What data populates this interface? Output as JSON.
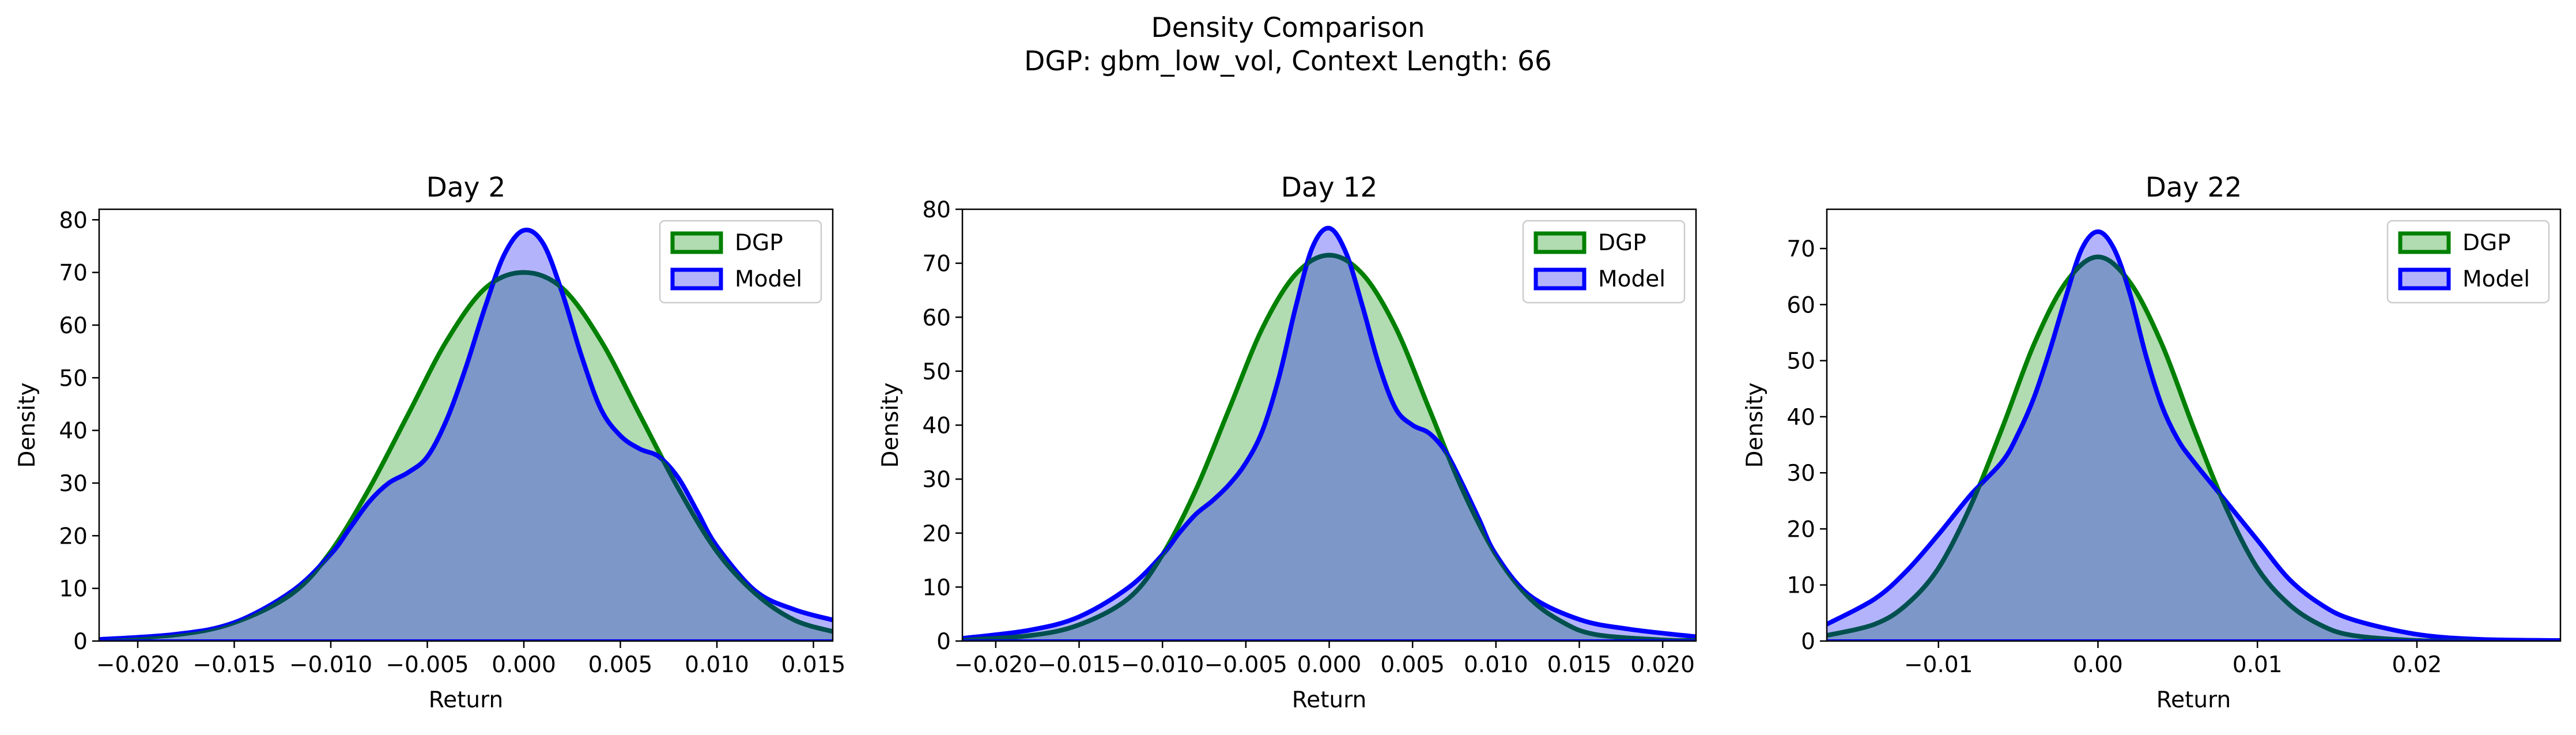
{
  "figure": {
    "title_line1": "Density Comparison",
    "title_line2": "DGP: gbm_low_vol, Context Length: 66"
  },
  "colors": {
    "dgp_line": "#008000",
    "dgp_fill": "#b1dbb1",
    "model_line": "#0000ff",
    "model_fill": "#b3b3fb",
    "overlap_fill": "#7e97c9",
    "overlap_line": "#005050"
  },
  "chart_data": [
    {
      "type": "area",
      "title": "Day 2",
      "xlabel": "Return",
      "ylabel": "Density",
      "xlim": [
        -0.022,
        0.016
      ],
      "ylim": [
        0,
        82
      ],
      "xticks": [
        -0.02,
        -0.015,
        -0.01,
        -0.005,
        0.0,
        0.005,
        0.01,
        0.015
      ],
      "xtick_labels": [
        "−0.020",
        "−0.015",
        "−0.010",
        "−0.005",
        "0.000",
        "0.005",
        "0.010",
        "0.015"
      ],
      "yticks": [
        0,
        10,
        20,
        30,
        40,
        50,
        60,
        70,
        80
      ],
      "ytick_labels": [
        "0",
        "10",
        "20",
        "30",
        "40",
        "50",
        "60",
        "70",
        "80"
      ],
      "legend": {
        "position": "upper right",
        "entries": [
          "DGP",
          "Model"
        ]
      },
      "series": [
        {
          "name": "DGP",
          "x": [
            -0.022,
            -0.018,
            -0.015,
            -0.012,
            -0.01,
            -0.008,
            -0.006,
            -0.004,
            -0.002,
            0.0,
            0.002,
            0.004,
            0.006,
            0.008,
            0.01,
            0.012,
            0.014,
            0.016
          ],
          "y": [
            0.3,
            1.2,
            3.5,
            9,
            17,
            29,
            43,
            57,
            67,
            70,
            67,
            57,
            43,
            29,
            17,
            9,
            4,
            1.8
          ]
        },
        {
          "name": "Model",
          "x": [
            -0.022,
            -0.018,
            -0.015,
            -0.012,
            -0.01,
            -0.009,
            -0.008,
            -0.007,
            -0.006,
            -0.005,
            -0.004,
            -0.003,
            -0.002,
            -0.001,
            0.0,
            0.001,
            0.002,
            0.003,
            0.004,
            0.005,
            0.006,
            0.007,
            0.008,
            0.009,
            0.01,
            0.012,
            0.014,
            0.016
          ],
          "y": [
            0.3,
            1.3,
            3.5,
            9.5,
            16.5,
            21.5,
            26.5,
            30,
            32,
            35,
            42,
            52,
            63.5,
            73.5,
            78,
            75.5,
            66,
            54,
            44,
            39,
            36.5,
            35,
            31,
            24.5,
            18,
            9.5,
            6,
            4
          ]
        }
      ]
    },
    {
      "type": "area",
      "title": "Day 12",
      "xlabel": "Return",
      "ylabel": "Density",
      "xlim": [
        -0.022,
        0.022
      ],
      "ylim": [
        0,
        80
      ],
      "xticks": [
        -0.02,
        -0.015,
        -0.01,
        -0.005,
        0.0,
        0.005,
        0.01,
        0.015,
        0.02
      ],
      "xtick_labels": [
        "−0.020",
        "−0.015",
        "−0.010",
        "−0.005",
        "0.000",
        "0.005",
        "0.010",
        "0.015",
        "0.020"
      ],
      "yticks": [
        0,
        10,
        20,
        30,
        40,
        50,
        60,
        70,
        80
      ],
      "ytick_labels": [
        "0",
        "10",
        "20",
        "30",
        "40",
        "50",
        "60",
        "70",
        "80"
      ],
      "legend": {
        "position": "upper right",
        "entries": [
          "DGP",
          "Model"
        ]
      },
      "series": [
        {
          "name": "DGP",
          "x": [
            -0.022,
            -0.018,
            -0.015,
            -0.012,
            -0.01,
            -0.008,
            -0.006,
            -0.004,
            -0.002,
            0.0,
            0.002,
            0.004,
            0.006,
            0.008,
            0.01,
            0.012,
            0.014,
            0.016,
            0.02,
            0.022
          ],
          "y": [
            0.2,
            1,
            3,
            8,
            16,
            28,
            43,
            58,
            68,
            71.5,
            68,
            58,
            43,
            28,
            16,
            8,
            3.5,
            1.2,
            0.2,
            0.1
          ]
        },
        {
          "name": "Model",
          "x": [
            -0.022,
            -0.018,
            -0.015,
            -0.012,
            -0.01,
            -0.009,
            -0.008,
            -0.007,
            -0.006,
            -0.005,
            -0.004,
            -0.003,
            -0.002,
            -0.001,
            0.0,
            0.001,
            0.002,
            0.003,
            0.004,
            0.005,
            0.006,
            0.007,
            0.008,
            0.009,
            0.01,
            0.012,
            0.015,
            0.018,
            0.022
          ],
          "y": [
            0.5,
            2,
            4.5,
            10,
            16,
            20,
            23.5,
            26,
            29,
            33,
            39,
            49,
            62,
            73,
            76.5,
            72,
            62,
            51,
            43,
            40,
            38.5,
            35,
            29,
            22.5,
            16,
            8.5,
            4,
            2.2,
            0.8
          ]
        }
      ]
    },
    {
      "type": "area",
      "title": "Day 22",
      "xlabel": "Return",
      "ylabel": "Density",
      "xlim": [
        -0.017,
        0.029
      ],
      "ylim": [
        0,
        77
      ],
      "xticks": [
        -0.01,
        0.0,
        0.01,
        0.02
      ],
      "xtick_labels": [
        "−0.01",
        "0.00",
        "0.01",
        "0.02"
      ],
      "yticks": [
        0,
        10,
        20,
        30,
        40,
        50,
        60,
        70
      ],
      "ytick_labels": [
        "0",
        "10",
        "20",
        "30",
        "40",
        "50",
        "60",
        "70"
      ],
      "legend": {
        "position": "upper right",
        "entries": [
          "DGP",
          "Model"
        ]
      },
      "series": [
        {
          "name": "DGP",
          "x": [
            -0.017,
            -0.014,
            -0.012,
            -0.01,
            -0.008,
            -0.006,
            -0.004,
            -0.002,
            0.0,
            0.002,
            0.004,
            0.006,
            0.008,
            0.01,
            0.012,
            0.014,
            0.016,
            0.02,
            0.024,
            0.029
          ],
          "y": [
            1,
            3,
            6.5,
            13,
            24,
            38,
            53,
            64,
            68.5,
            64,
            53,
            38,
            24,
            13,
            6.5,
            2.8,
            1,
            0.1,
            0,
            0
          ]
        },
        {
          "name": "Model",
          "x": [
            -0.017,
            -0.014,
            -0.012,
            -0.01,
            -0.008,
            -0.006,
            -0.005,
            -0.004,
            -0.003,
            -0.002,
            -0.001,
            0.0,
            0.001,
            0.002,
            0.003,
            0.004,
            0.005,
            0.006,
            0.008,
            0.01,
            0.012,
            0.014,
            0.016,
            0.02,
            0.024,
            0.029
          ],
          "y": [
            3,
            7.5,
            12.5,
            19,
            26,
            32,
            37,
            43.5,
            52,
            61.5,
            70,
            73,
            70,
            62,
            51,
            42,
            36,
            32,
            25,
            18,
            11,
            6.5,
            3.8,
            1.2,
            0.3,
            0.1
          ]
        }
      ]
    }
  ]
}
